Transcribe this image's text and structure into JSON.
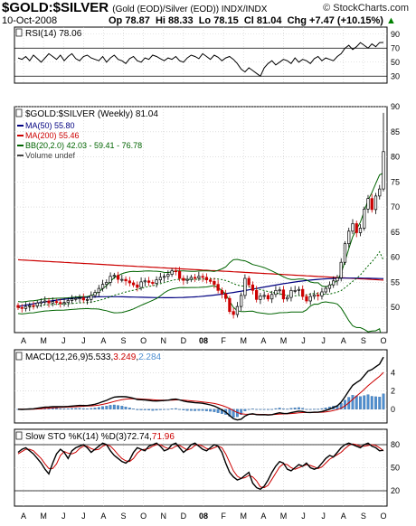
{
  "header": {
    "symbol": "$GOLD:$SILVER",
    "description": "(Gold (EOD)/Silver (EOD))  INDX/INDX",
    "credit": "© StockCharts.com",
    "date": "10-Oct-2008",
    "open": "Op 78.87",
    "high": "Hi 88.33",
    "low": "Lo 78.15",
    "close": "Cl 81.04",
    "change": "Chg +7.47 (+10.15%)",
    "up_arrow": "triangle-up-icon"
  },
  "colors": {
    "up": "#008000",
    "down": "#cc0000",
    "ma50": "#000080",
    "ma200": "#cc0000",
    "bb": "#006400",
    "macd_hist": "#4f8fd0",
    "grid": "#cccccc"
  },
  "x_labels": [
    "A",
    "M",
    "J",
    "J",
    "A",
    "S",
    "O",
    "N",
    "D",
    "08",
    "F",
    "M",
    "A",
    "M",
    "J",
    "J",
    "A",
    "S",
    "O"
  ],
  "chart_data": [
    {
      "type": "line",
      "panel": "rsi",
      "title": "RSI(14) 78.06",
      "ylim": [
        20,
        100
      ],
      "yticks": [
        90,
        70,
        50,
        30
      ],
      "overbought": 70,
      "oversold": 30,
      "values": [
        56,
        54,
        58,
        52,
        60,
        55,
        50,
        56,
        62,
        58,
        54,
        60,
        52,
        58,
        62,
        55,
        52,
        58,
        60,
        56,
        54,
        52,
        58,
        50,
        56,
        60,
        54,
        52,
        48,
        55,
        58,
        52,
        50,
        56,
        54,
        60,
        58,
        55,
        52,
        56,
        54,
        58,
        52,
        50,
        56,
        60,
        58,
        55,
        62,
        58,
        54,
        60,
        57,
        52,
        56,
        58,
        54,
        48,
        40,
        36,
        42,
        38,
        34,
        30,
        42,
        48,
        52,
        46,
        50,
        54,
        52,
        48,
        56,
        50,
        54,
        52,
        48,
        55,
        58,
        52,
        56,
        54,
        52,
        58,
        62,
        70,
        74,
        68,
        72,
        78,
        74,
        70,
        76,
        72,
        78,
        78.06
      ]
    },
    {
      "type": "candlestick",
      "panel": "price",
      "title": "$GOLD:$SILVER (Weekly) 81.04",
      "legend": [
        "MA(50) 55.80",
        "MA(200) 55.46",
        "BB(20,2.0) 42.03 - 59.41 - 76.78",
        "Volume undef"
      ],
      "ylim": [
        45,
        90
      ],
      "yticks": [
        90,
        85,
        80,
        75,
        70,
        65,
        60,
        55,
        50
      ],
      "close": [
        50.0,
        49.8,
        50.2,
        50.4,
        50.3,
        50.9,
        51.1,
        51.3,
        50.9,
        51.2,
        51.0,
        50.8,
        51.0,
        51.4,
        51.7,
        51.8,
        51.9,
        51.5,
        51.6,
        52.4,
        53.0,
        53.8,
        54.6,
        55.0,
        56.2,
        56.4,
        55.6,
        55.6,
        55.3,
        54.9,
        54.5,
        54.0,
        55.1,
        55.3,
        55.0,
        54.8,
        55.5,
        56.0,
        56.2,
        56.6,
        57.3,
        57.2,
        55.8,
        55.4,
        55.6,
        56.0,
        55.9,
        56.2,
        56.0,
        55.5,
        55.2,
        54.6,
        53.4,
        52.7,
        51.8,
        49.2,
        48.6,
        50.2,
        52.4,
        55.8,
        54.5,
        53.4,
        51.6,
        52.3,
        52.4,
        51.7,
        52.6,
        53.4,
        53.5,
        51.7,
        52.0,
        53.4,
        53.4,
        53.6,
        52.2,
        51.3,
        52.2,
        52.5,
        52.3,
        53.1,
        53.8,
        54.5,
        55.3,
        55.9,
        59.0,
        62.7,
        65.2,
        66.7,
        64.9,
        65.8,
        69.6,
        71.7,
        69.5,
        72.2,
        73.6,
        81.04
      ],
      "open": [
        50.4,
        50.0,
        49.8,
        50.2,
        50.4,
        50.3,
        50.9,
        51.1,
        51.3,
        50.9,
        51.2,
        51.0,
        50.8,
        51.0,
        51.4,
        51.7,
        51.8,
        51.9,
        51.5,
        51.6,
        52.4,
        53.0,
        53.8,
        54.6,
        55.0,
        56.2,
        56.4,
        55.6,
        55.6,
        55.3,
        54.9,
        54.5,
        54.0,
        55.1,
        55.3,
        55.0,
        54.8,
        55.5,
        56.0,
        56.2,
        56.6,
        57.3,
        57.2,
        55.8,
        55.4,
        55.6,
        56.0,
        55.9,
        56.2,
        56.0,
        55.5,
        55.2,
        54.6,
        53.4,
        52.7,
        51.8,
        49.2,
        48.6,
        50.2,
        52.4,
        55.8,
        54.5,
        53.4,
        51.6,
        52.3,
        52.4,
        51.7,
        52.6,
        53.4,
        53.5,
        51.7,
        52.0,
        53.4,
        53.4,
        53.6,
        52.2,
        51.3,
        52.2,
        52.5,
        52.3,
        53.1,
        53.8,
        54.5,
        55.3,
        55.9,
        59.0,
        62.7,
        65.2,
        66.7,
        64.9,
        65.8,
        69.6,
        71.7,
        69.5,
        72.2,
        73.6
      ],
      "ma50_last": 55.8,
      "ma200_last": 55.46,
      "bb_upper_last": 76.78,
      "bb_mid_last": 59.41,
      "bb_lower_last": 42.03
    },
    {
      "type": "line",
      "panel": "macd",
      "title": "MACD(12,26,9) 5.533, 3.249, 2.284",
      "title_parts": [
        "MACD(12,26,9) ",
        "5.533",
        ", ",
        "3.249",
        ", ",
        "2.284"
      ],
      "ylim": [
        -1.5,
        6.5
      ],
      "yticks": [
        4,
        2,
        0
      ]
    },
    {
      "type": "line",
      "panel": "sto",
      "title": "Slow STO %K(14) %D(3) 72.74, 71.96",
      "title_parts": [
        "Slow STO %K(14) %D(3) ",
        "72.74",
        ", ",
        "71.96"
      ],
      "ylim": [
        0,
        100
      ],
      "yticks": [
        80,
        50,
        20
      ],
      "k": [
        70,
        74,
        76,
        72,
        68,
        62,
        56,
        48,
        42,
        56,
        68,
        74,
        70,
        62,
        72,
        76,
        78,
        80,
        76,
        70,
        74,
        78,
        82,
        80,
        72,
        66,
        62,
        58,
        56,
        60,
        70,
        76,
        74,
        72,
        78,
        80,
        82,
        78,
        72,
        74,
        80,
        82,
        76,
        70,
        74,
        80,
        82,
        78,
        74,
        72,
        76,
        80,
        78,
        70,
        56,
        44,
        38,
        34,
        36,
        40,
        44,
        30,
        24,
        22,
        26,
        34,
        44,
        52,
        58,
        56,
        48,
        46,
        50,
        54,
        52,
        56,
        50,
        48,
        50,
        56,
        62,
        66,
        64,
        70,
        76,
        80,
        82,
        80,
        78,
        76,
        80,
        82,
        78,
        76,
        72,
        72.74
      ],
      "d": [
        68,
        71,
        74,
        74,
        72,
        67,
        62,
        55,
        49,
        49,
        55,
        66,
        71,
        69,
        68,
        70,
        75,
        78,
        78,
        75,
        73,
        74,
        78,
        80,
        78,
        73,
        67,
        62,
        59,
        58,
        62,
        69,
        73,
        74,
        75,
        78,
        80,
        80,
        77,
        75,
        75,
        78,
        79,
        76,
        73,
        75,
        79,
        80,
        78,
        75,
        74,
        76,
        78,
        76,
        68,
        57,
        46,
        39,
        36,
        37,
        40,
        38,
        33,
        25,
        24,
        27,
        35,
        43,
        51,
        55,
        54,
        50,
        48,
        50,
        52,
        54,
        53,
        51,
        49,
        51,
        56,
        61,
        64,
        67,
        70,
        75,
        79,
        81,
        80,
        78,
        78,
        79,
        80,
        79,
        76,
        71.96
      ]
    }
  ]
}
